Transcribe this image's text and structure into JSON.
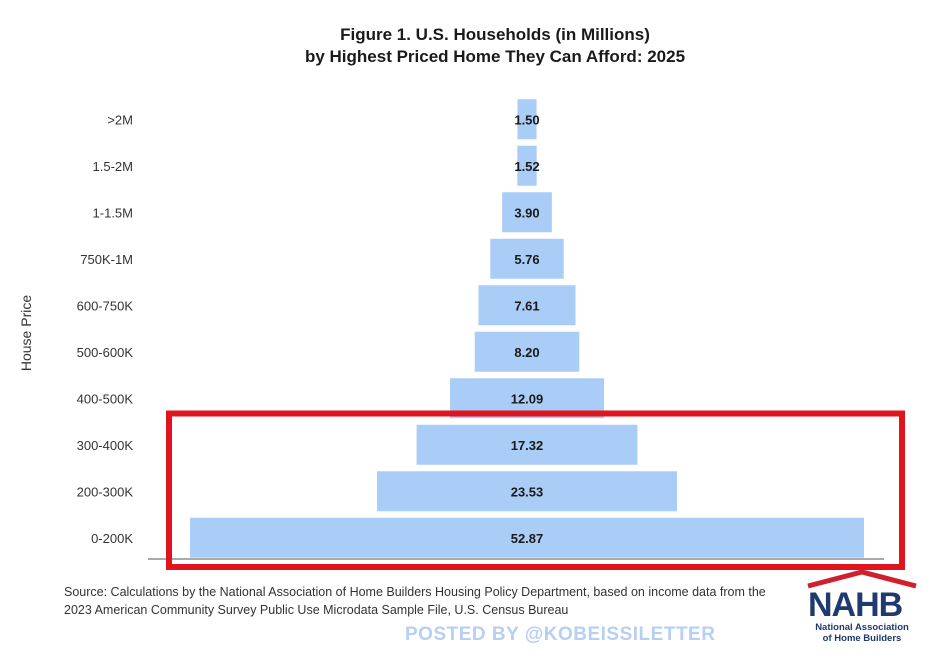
{
  "chart_data": {
    "type": "bar",
    "orientation": "horizontal",
    "title": "Figure 1. U.S. Households (in Millions)",
    "subtitle": "by Highest Priced Home They Can Afford: 2025",
    "ylabel": "House Price",
    "xlabel": "",
    "categories": [
      ">2M",
      "1.5-2M",
      "1-1.5M",
      "750K-1M",
      "600-750K",
      "500-600K",
      "400-500K",
      "300-400K",
      "200-300K",
      "0-200K"
    ],
    "values": [
      1.5,
      1.52,
      3.9,
      5.76,
      7.61,
      8.2,
      12.09,
      17.32,
      23.53,
      52.87
    ],
    "value_labels": [
      "1.50",
      "1.52",
      "3.90",
      "5.76",
      "7.61",
      "8.20",
      "12.09",
      "17.32",
      "23.53",
      "52.87"
    ],
    "bars_centered": true,
    "bar_color": "#a9cdf7",
    "highlight": {
      "categories": [
        "300-400K",
        "200-300K",
        "0-200K"
      ],
      "color": "#e0141c"
    }
  },
  "source_text": "Source: Calculations by the National Association of Home Builders Housing Policy Department, based on income data from the 2023 American Community Survey Public Use Microdata Sample File, U.S. Census Bureau",
  "watermark": "POSTED BY @KOBEISSILETTER",
  "logo": {
    "text": "NAHB",
    "line1": "National Association",
    "line2": "of Home Builders",
    "colors": {
      "navy": "#1f3a6e",
      "red": "#d0202e"
    }
  }
}
